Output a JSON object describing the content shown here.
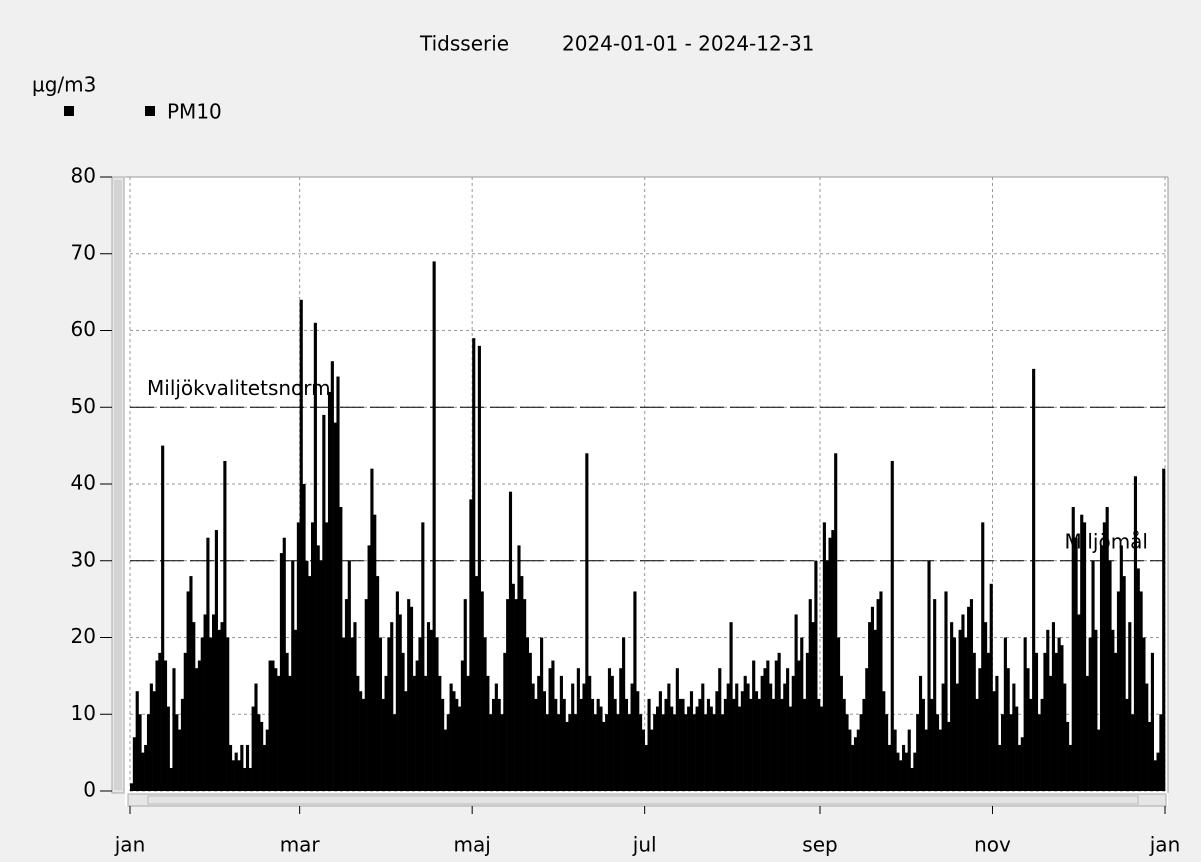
{
  "chart_data": {
    "type": "bar",
    "title": "Tidsserie",
    "subtitle": "2024-01-01 - 2024-12-31",
    "y_label": "µg/m3",
    "series": [
      {
        "name": "PM10",
        "color": "#000000",
        "values": [
          1,
          7,
          13,
          10,
          5,
          6,
          10,
          14,
          13,
          17,
          18,
          45,
          17,
          11,
          3,
          16,
          10,
          8,
          12,
          18,
          26,
          28,
          22,
          16,
          17,
          20,
          23,
          33,
          20,
          23,
          34,
          21,
          22,
          43,
          20,
          6,
          4,
          5,
          4,
          6,
          3,
          6,
          3,
          11,
          14,
          10,
          9,
          6,
          8,
          17,
          17,
          16,
          15,
          31,
          33,
          18,
          15,
          30,
          21,
          35,
          64,
          40,
          30,
          28,
          35,
          61,
          32,
          30,
          49,
          35,
          52,
          56,
          48,
          54,
          37,
          20,
          25,
          30,
          20,
          22,
          15,
          13,
          12,
          25,
          32,
          42,
          36,
          28,
          20,
          12,
          15,
          20,
          22,
          10,
          26,
          23,
          18,
          13,
          25,
          24,
          15,
          17,
          20,
          35,
          15,
          22,
          21,
          69,
          20,
          15,
          12,
          8,
          10,
          14,
          13,
          12,
          11,
          17,
          25,
          15,
          38,
          59,
          28,
          58,
          26,
          20,
          15,
          10,
          12,
          14,
          12,
          10,
          18,
          25,
          39,
          27,
          25,
          32,
          28,
          25,
          20,
          18,
          14,
          12,
          15,
          20,
          13,
          10,
          16,
          17,
          12,
          10,
          15,
          12,
          9,
          10,
          14,
          10,
          16,
          12,
          14,
          44,
          15,
          12,
          10,
          12,
          11,
          9,
          10,
          16,
          15,
          12,
          10,
          16,
          20,
          12,
          10,
          14,
          26,
          13,
          10,
          8,
          6,
          12,
          8,
          10,
          11,
          13,
          10,
          12,
          14,
          11,
          10,
          16,
          12,
          12,
          10,
          11,
          13,
          10,
          11,
          12,
          14,
          10,
          12,
          11,
          10,
          13,
          16,
          10,
          12,
          14,
          22,
          12,
          14,
          11,
          13,
          15,
          14,
          12,
          17,
          13,
          12,
          15,
          16,
          17,
          14,
          12,
          17,
          18,
          12,
          14,
          16,
          11,
          15,
          23,
          17,
          20,
          12,
          18,
          25,
          22,
          30,
          12,
          11,
          35,
          30,
          33,
          34,
          44,
          20,
          15,
          12,
          10,
          8,
          6,
          7,
          8,
          10,
          12,
          16,
          22,
          24,
          21,
          25,
          26,
          13,
          10,
          6,
          43,
          8,
          5,
          4,
          6,
          5,
          8,
          3,
          5,
          10,
          15,
          12,
          8,
          30,
          12,
          25,
          10,
          8,
          14,
          26,
          9,
          22,
          20,
          14,
          21,
          23,
          20,
          24,
          25,
          18,
          12,
          16,
          35,
          22,
          18,
          27,
          13,
          15,
          6,
          10,
          20,
          16,
          10,
          14,
          11,
          6,
          7,
          20,
          16,
          12,
          55,
          18,
          10,
          12,
          18,
          21,
          15,
          22,
          18,
          20,
          19,
          14,
          9,
          6,
          37,
          33,
          23,
          36,
          35,
          15,
          20,
          30,
          21,
          8,
          32,
          35,
          37,
          30,
          21,
          18,
          26,
          32,
          28,
          12,
          22,
          10,
          41,
          29,
          26,
          20,
          14,
          9,
          18,
          4,
          5,
          10,
          42
        ]
      }
    ],
    "x": [
      0,
      1,
      2,
      3,
      4,
      5,
      6,
      7,
      8,
      9,
      10,
      11,
      12,
      13,
      14,
      15,
      16,
      17,
      18,
      19,
      20,
      21,
      22,
      23,
      24,
      25,
      26,
      27,
      28,
      29,
      30,
      31,
      32,
      33,
      34,
      35,
      36,
      37,
      38,
      39,
      40,
      41,
      42,
      43,
      44,
      45,
      46,
      47,
      48,
      49,
      50,
      51,
      52,
      53,
      54,
      55,
      56,
      57,
      58,
      59,
      60,
      61,
      62,
      63,
      64,
      65,
      66,
      67,
      68,
      69,
      70,
      71,
      72,
      73,
      74,
      75,
      76,
      77,
      78,
      79,
      80,
      81,
      82,
      83,
      84,
      85,
      86,
      87,
      88,
      89,
      90,
      91,
      92,
      93,
      94,
      95,
      96,
      97,
      98,
      99,
      100,
      101,
      102,
      103,
      104,
      105,
      106,
      107,
      108,
      109,
      110,
      111,
      112,
      113,
      114,
      115,
      116,
      117,
      118,
      119,
      120,
      121,
      122,
      123,
      124,
      125,
      126,
      127,
      128,
      129,
      130,
      131,
      132,
      133,
      134,
      135,
      136,
      137,
      138,
      139,
      140,
      141,
      142,
      143,
      144,
      145,
      146,
      147,
      148,
      149,
      150,
      151,
      152,
      153,
      154,
      155,
      156,
      157,
      158,
      159,
      160,
      161,
      162,
      163,
      164,
      165,
      166,
      167,
      168,
      169,
      170,
      171,
      172,
      173,
      174,
      175,
      176,
      177,
      178,
      179,
      180,
      181,
      182,
      183,
      184,
      185,
      186,
      187,
      188,
      189,
      190,
      191,
      192,
      193,
      194,
      195,
      196,
      197,
      198,
      199,
      200,
      201,
      202,
      203,
      204,
      205,
      206,
      207,
      208,
      209,
      210,
      211,
      212,
      213,
      214,
      215,
      216,
      217,
      218,
      219,
      220,
      221,
      222,
      223,
      224,
      225,
      226,
      227,
      228,
      229,
      230,
      231,
      232,
      233,
      234,
      235,
      236,
      237,
      238,
      239,
      240,
      241,
      242,
      243,
      244,
      245,
      246,
      247,
      248,
      249,
      250,
      251,
      252,
      253,
      254,
      255,
      256,
      257,
      258,
      259,
      260,
      261,
      262,
      263,
      264,
      265,
      266,
      267,
      268,
      269,
      270,
      271,
      272,
      273,
      274,
      275,
      276,
      277,
      278,
      279,
      280,
      281,
      282,
      283,
      284,
      285,
      286,
      287,
      288,
      289,
      290,
      291,
      292,
      293,
      294,
      295,
      296,
      297,
      298,
      299,
      300,
      301,
      302,
      303,
      304,
      305,
      306,
      307,
      308,
      309,
      310,
      311,
      312,
      313,
      314,
      315,
      316,
      317,
      318,
      319,
      320,
      321,
      322,
      323,
      324,
      325,
      326,
      327,
      328,
      329,
      330,
      331,
      332,
      333,
      334,
      335,
      336,
      337,
      338,
      339,
      340,
      341,
      342,
      343,
      344,
      345,
      346,
      347,
      348,
      349,
      350,
      351,
      352,
      353,
      354,
      355,
      356,
      357,
      358,
      359,
      360,
      361,
      362,
      363,
      364,
      365
    ],
    "xlim": [
      0,
      366
    ],
    "xticks": [
      {
        "value": 0,
        "label": "jan"
      },
      {
        "value": 60,
        "label": "mar"
      },
      {
        "value": 121,
        "label": "maj"
      },
      {
        "value": 182,
        "label": "jul"
      },
      {
        "value": 244,
        "label": "sep"
      },
      {
        "value": 305,
        "label": "nov"
      },
      {
        "value": 366,
        "label": "jan"
      }
    ],
    "ylim": [
      0,
      80
    ],
    "yticks": [
      0,
      10,
      20,
      30,
      40,
      50,
      60,
      70,
      80
    ],
    "grid": true,
    "reference_lines": [
      {
        "label": "Miljökvalitetsnorm",
        "value": 50
      },
      {
        "label": "Miljömål",
        "value": 30
      }
    ]
  }
}
